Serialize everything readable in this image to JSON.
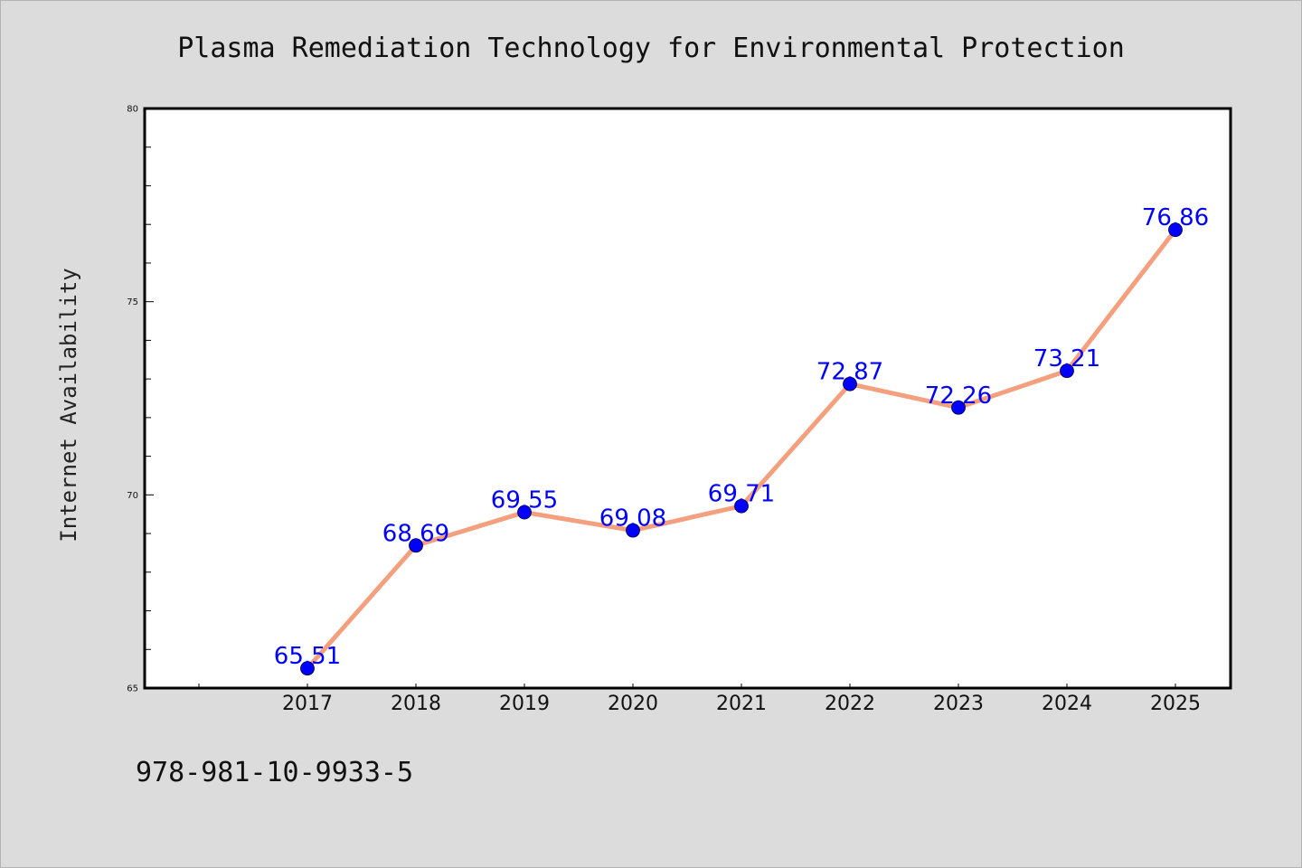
{
  "chart_data": {
    "type": "line",
    "title": "Plasma Remediation Technology for Environmental Protection",
    "xlabel": "",
    "ylabel": "Internet Availability",
    "categories": [
      "2017",
      "2018",
      "2019",
      "2020",
      "2021",
      "2022",
      "2023",
      "2024",
      "2025"
    ],
    "series": [
      {
        "values": [
          65.51,
          68.69,
          69.55,
          69.08,
          69.71,
          72.87,
          72.26,
          73.21,
          76.86
        ],
        "data_labels": [
          "65.51",
          "68.69",
          "69.55",
          "69.08",
          "69.71",
          "72.87",
          "72.26",
          "73.21",
          "76.86"
        ]
      }
    ],
    "ylim": [
      65,
      80
    ],
    "yticks": [
      "65",
      "70",
      "75",
      "80"
    ],
    "grid": false,
    "legend": "none",
    "colors": {
      "line": "#f4a07e",
      "marker": "#0000ff",
      "data_label": "#0000ff",
      "plot_background": "#ffffff",
      "figure_background": "#dcdcdc"
    }
  },
  "footer": {
    "isbn": "978-981-10-9933-5"
  }
}
